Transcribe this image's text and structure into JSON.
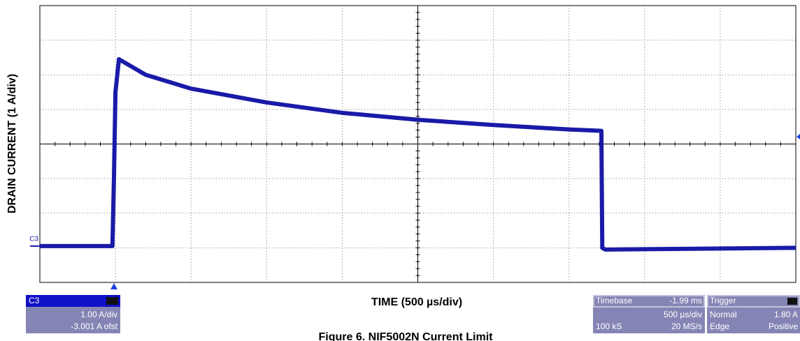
{
  "chart_data": {
    "type": "line",
    "y_label": "DRAIN CURRENT (1 A/div)",
    "x_label": "TIME (500 µs/div)",
    "caption": "Figure 6. NIF5002N Current Limit",
    "x": [
      0,
      480,
      490,
      500,
      523,
      700,
      1000,
      1500,
      2000,
      2500,
      3000,
      3500,
      3714,
      3720,
      3740,
      5000
    ],
    "series": [
      {
        "name": "C3",
        "color": "#1a1aa8",
        "values": [
          0.05,
          0.05,
          2,
          4.5,
          5.45,
          5.0,
          4.6,
          4.2,
          3.9,
          3.7,
          3.55,
          3.42,
          3.38,
          0,
          -0.05,
          0
        ]
      }
    ],
    "xlim": [
      0,
      5000
    ],
    "ylim": [
      -1,
      7
    ],
    "grid": true,
    "channel_panel": {
      "label": "C3",
      "scale": "1.00 A/div",
      "offset": "-3.001 A ofst"
    },
    "timebase_panel": {
      "label": "Timebase",
      "delay": "-1.99 ms",
      "scale": "500 µs/div",
      "samples": "100 kS",
      "rate": "20 MS/s"
    },
    "trigger_panel": {
      "label": "Trigger",
      "mode": "Normal",
      "level": "1.80 A",
      "kind": "Edge",
      "slope": "Positive"
    }
  }
}
